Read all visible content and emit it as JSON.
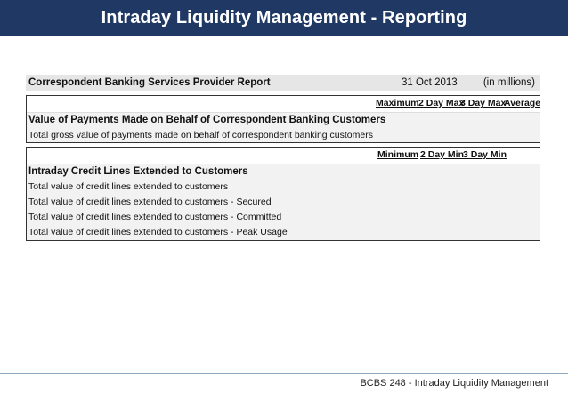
{
  "title": "Intraday Liquidity Management - Reporting",
  "report": {
    "header_title": "Correspondent Banking Services Provider Report",
    "date": "31 Oct 2013",
    "units": "(in millions)"
  },
  "section1": {
    "columns": [
      "Maximum",
      "2 Day Max",
      "3 Day Max",
      "Average"
    ],
    "heading": "Value of Payments Made on Behalf of Correspondent Banking Customers",
    "rows": [
      "Total gross value of payments made on behalf of correspondent banking customers"
    ]
  },
  "section2": {
    "columns": [
      "Minimum",
      "2 Day Min",
      "3 Day Min"
    ],
    "heading": "Intraday Credit Lines Extended to Customers",
    "rows": [
      "Total value of credit lines extended to customers",
      "Total value of credit lines extended to customers - Secured",
      "Total value of credit lines extended to customers - Committed",
      "Total value of credit lines extended to customers - Peak Usage"
    ]
  },
  "footer": "BCBS 248 - Intraday Liquidity Management",
  "colors": {
    "title_bar": "#1f3864",
    "section_fill": "#f2f2f2",
    "header_fill": "#e6e6e6"
  }
}
